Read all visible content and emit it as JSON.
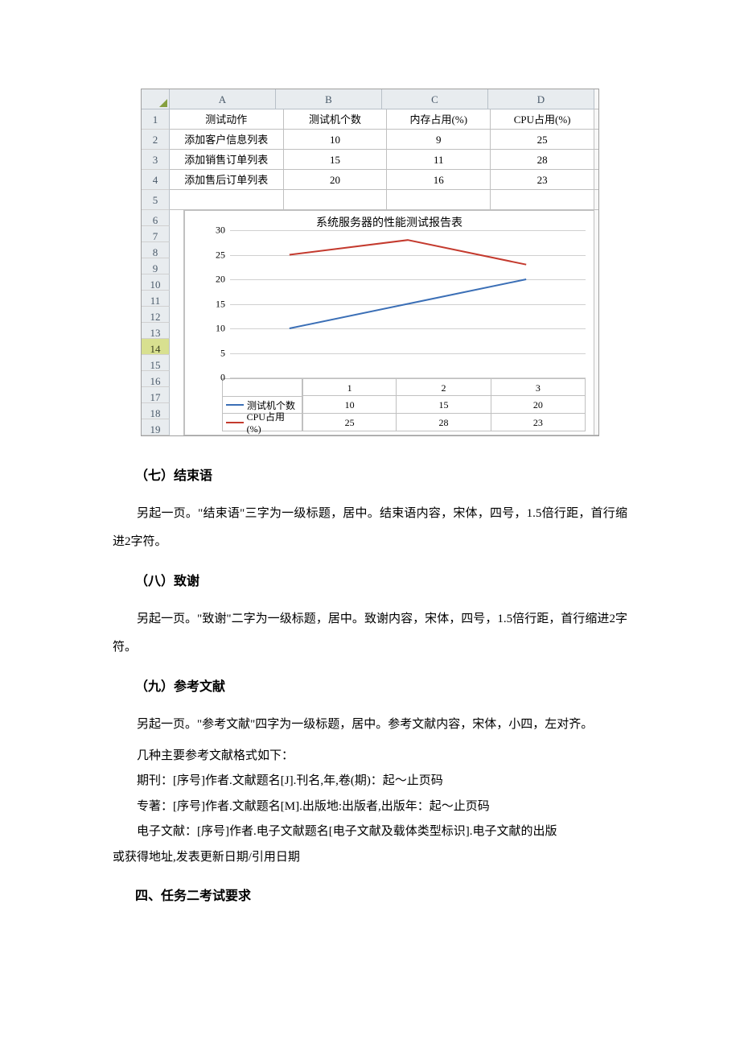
{
  "spreadsheet": {
    "col_headers": [
      "A",
      "B",
      "C",
      "D"
    ],
    "row_headers": [
      "1",
      "2",
      "3",
      "4",
      "5",
      "6",
      "7",
      "8",
      "9",
      "10",
      "11",
      "12",
      "13",
      "14",
      "15",
      "16",
      "17",
      "18",
      "19"
    ],
    "active_row": "14",
    "header_row": {
      "a": "测试动作",
      "b": "测试机个数",
      "c": "内存占用(%)",
      "d": "CPU占用(%)"
    },
    "data_rows": [
      {
        "a": "添加客户信息列表",
        "b": "10",
        "c": "9",
        "d": "25"
      },
      {
        "a": "添加销售订单列表",
        "b": "15",
        "c": "11",
        "d": "28"
      },
      {
        "a": "添加售后订单列表",
        "b": "20",
        "c": "16",
        "d": "23"
      }
    ],
    "chart": {
      "title": "系统服务器的性能测试报告表",
      "type": "line",
      "background_color": "#ffffff",
      "grid_color": "#d0d0d0",
      "axis_color": "#888888",
      "ylim": [
        0,
        30
      ],
      "ytick_step": 5,
      "yticks": [
        "0",
        "5",
        "10",
        "15",
        "20",
        "25",
        "30"
      ],
      "categories": [
        "1",
        "2",
        "3"
      ],
      "series": [
        {
          "name": "测试机个数",
          "color": "#3b6fb6",
          "values": [
            10,
            15,
            20
          ]
        },
        {
          "name": "CPU占用(%)",
          "color": "#c43a2e",
          "values": [
            25,
            28,
            23
          ]
        }
      ],
      "title_fontsize": 14,
      "line_width": 2
    }
  },
  "sections": {
    "s7": {
      "heading": "（七）结束语",
      "body": "另起一页。\"结束语\"三字为一级标题，居中。结束语内容，宋体，四号，1.5倍行距，首行缩进2字符。"
    },
    "s8": {
      "heading": "（八）致谢",
      "body": "另起一页。\"致谢\"二字为一级标题，居中。致谢内容，宋体，四号，1.5倍行距，首行缩进2字符。"
    },
    "s9": {
      "heading": "（九）参考文献",
      "body": "另起一页。\"参考文献\"四字为一级标题，居中。参考文献内容，宋体，小四，左对齐。",
      "sub1": "几种主要参考文献格式如下：",
      "ref1": "期刊：[序号]作者.文献题名[J].刊名,年,卷(期)：起～止页码",
      "ref2": "专著：[序号]作者.文献题名[M].出版地:出版者,出版年：起～止页码",
      "ref3_line1": "电子文献：[序号]作者.电子文献题名[电子文献及载体类型标识].电子文献的出版",
      "ref3_line2": "或获得地址,发表更新日期/引用日期"
    },
    "s_task2": {
      "heading": "四、任务二考试要求"
    }
  }
}
